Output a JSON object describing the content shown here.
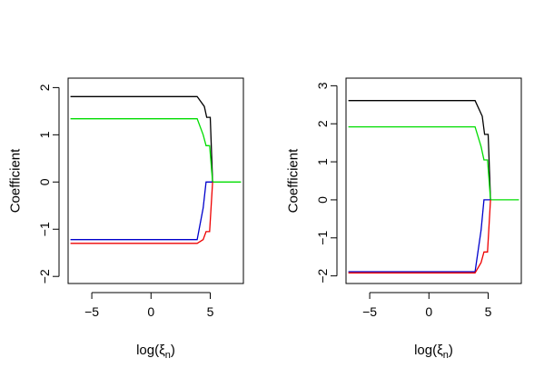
{
  "chart_data": [
    {
      "type": "line",
      "xlabel": "log(ξn)",
      "xlabel_main": "log(ξ",
      "xlabel_sub": "n",
      "xlabel_close": ")",
      "ylabel": "Coefficient",
      "xlim": [
        -7.0,
        7.8
      ],
      "ylim": [
        -2.15,
        2.2
      ],
      "xticks": [
        -5,
        0,
        5
      ],
      "xtick_labels": [
        "−5",
        "0",
        "5"
      ],
      "yticks": [
        -2,
        -1,
        0,
        1,
        2
      ],
      "ytick_labels": [
        "−2",
        "−1",
        "0",
        "1",
        "2"
      ],
      "series": [
        {
          "color": "#000000",
          "x": [
            -6.8,
            3.9,
            4.5,
            4.7,
            5.0,
            5.2
          ],
          "y": [
            1.81,
            1.81,
            1.6,
            1.37,
            1.37,
            0.0
          ]
        },
        {
          "color": "#00dd00",
          "x": [
            -6.8,
            3.9,
            4.4,
            4.65,
            4.95,
            5.2,
            7.6
          ],
          "y": [
            1.34,
            1.34,
            1.0,
            0.77,
            0.77,
            0.0,
            0.0
          ]
        },
        {
          "color": "#0000cc",
          "x": [
            -6.8,
            3.9,
            4.4,
            4.65,
            5.2
          ],
          "y": [
            -1.22,
            -1.22,
            -0.55,
            0.0,
            0.0
          ]
        },
        {
          "color": "#ee0000",
          "x": [
            -6.8,
            3.9,
            4.4,
            4.65,
            4.95,
            5.2
          ],
          "y": [
            -1.3,
            -1.3,
            -1.22,
            -1.05,
            -1.05,
            0.0
          ]
        }
      ]
    },
    {
      "type": "line",
      "xlabel": "log(ξn)",
      "xlabel_main": "log(ξ",
      "xlabel_sub": "n",
      "xlabel_close": ")",
      "ylabel": "Coefficient",
      "xlim": [
        -7.0,
        7.8
      ],
      "ylim": [
        -2.2,
        3.2
      ],
      "xticks": [
        -5,
        0,
        5
      ],
      "xtick_labels": [
        "−5",
        "0",
        "5"
      ],
      "yticks": [
        -2,
        -1,
        0,
        1,
        2,
        3
      ],
      "ytick_labels": [
        "−2",
        "−1",
        "0",
        "1",
        "2",
        "3"
      ],
      "series": [
        {
          "color": "#000000",
          "x": [
            -6.8,
            3.9,
            4.5,
            4.7,
            5.0,
            5.2
          ],
          "y": [
            2.61,
            2.61,
            2.2,
            1.72,
            1.72,
            0.0
          ]
        },
        {
          "color": "#00dd00",
          "x": [
            -6.8,
            3.9,
            4.4,
            4.65,
            4.95,
            5.2,
            7.6
          ],
          "y": [
            1.92,
            1.92,
            1.4,
            1.05,
            1.05,
            0.0,
            0.0
          ]
        },
        {
          "color": "#0000cc",
          "x": [
            -6.8,
            3.9,
            4.4,
            4.65,
            5.2
          ],
          "y": [
            -1.89,
            -1.89,
            -0.8,
            0.0,
            0.0
          ]
        },
        {
          "color": "#ee0000",
          "x": [
            -6.8,
            3.9,
            4.4,
            4.65,
            4.95,
            5.2
          ],
          "y": [
            -1.92,
            -1.92,
            -1.65,
            -1.37,
            -1.37,
            0.0
          ]
        }
      ]
    }
  ]
}
